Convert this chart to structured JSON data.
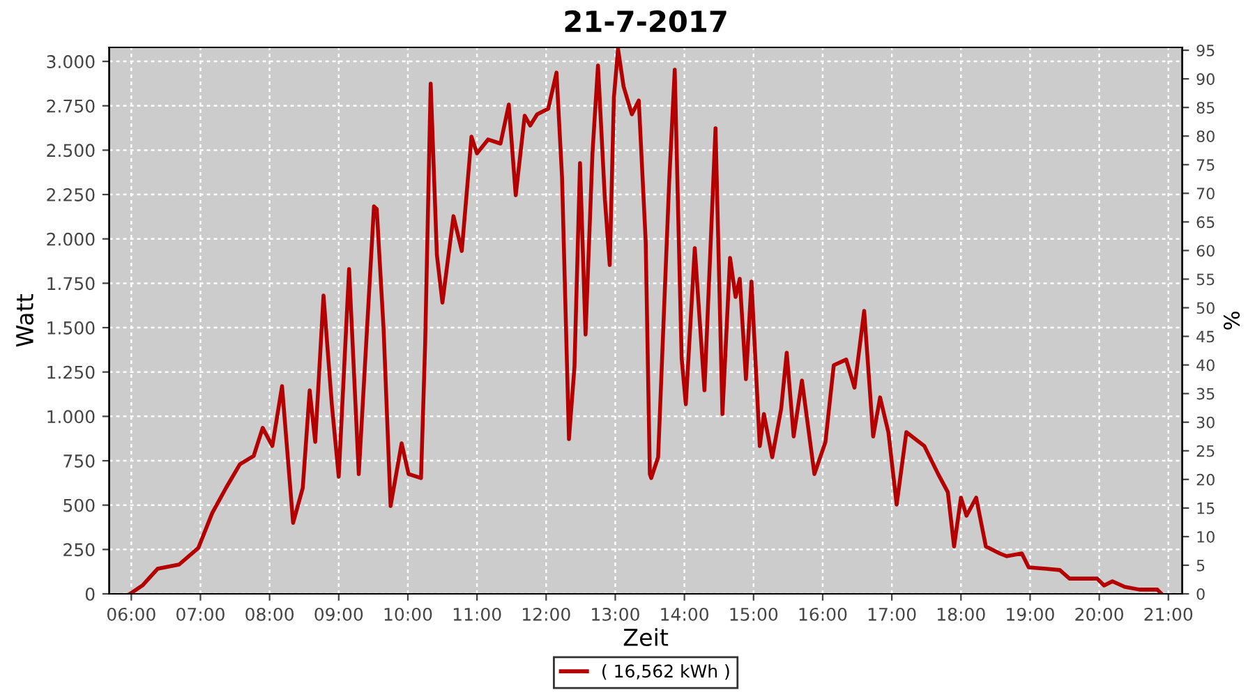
{
  "chart_data": {
    "type": "line",
    "title": "21-7-2017",
    "xlabel": "Zeit",
    "ylabel": "Watt",
    "y2label": "%",
    "series": [
      {
        "name": "( 16,562 kWh )",
        "color": "#b40000",
        "x": [
          5.98,
          6.16,
          6.38,
          6.69,
          6.97,
          7.17,
          7.37,
          7.57,
          7.77,
          7.9,
          8.04,
          8.18,
          8.34,
          8.48,
          8.58,
          8.66,
          8.78,
          8.9,
          9.0,
          9.15,
          9.29,
          9.51,
          9.55,
          9.65,
          9.75,
          9.91,
          10.01,
          10.19,
          10.25,
          10.33,
          10.42,
          10.5,
          10.66,
          10.78,
          10.92,
          11.0,
          11.16,
          11.34,
          11.46,
          11.56,
          11.69,
          11.77,
          11.87,
          12.03,
          12.15,
          12.23,
          12.33,
          12.41,
          12.49,
          12.57,
          12.67,
          12.75,
          12.85,
          12.92,
          12.98,
          13.04,
          13.12,
          13.24,
          13.34,
          13.44,
          13.5,
          13.52,
          13.62,
          13.78,
          13.86,
          13.96,
          14.02,
          14.15,
          14.29,
          14.45,
          14.55,
          14.66,
          14.74,
          14.8,
          14.89,
          14.97,
          15.09,
          15.15,
          15.27,
          15.4,
          15.48,
          15.58,
          15.7,
          15.88,
          16.04,
          16.16,
          16.34,
          16.46,
          16.6,
          16.73,
          16.83,
          16.95,
          17.07,
          17.21,
          17.47,
          17.67,
          17.81,
          17.9,
          18.0,
          18.08,
          18.22,
          18.36,
          18.56,
          18.66,
          18.88,
          18.98,
          19.23,
          19.43,
          19.57,
          19.77,
          19.97,
          20.07,
          20.19,
          20.37,
          20.58,
          20.84,
          20.9
        ],
        "values": [
          0,
          47,
          141,
          165,
          259,
          455,
          597,
          730,
          777,
          935,
          833,
          1170,
          400,
          597,
          1147,
          856,
          1681,
          1068,
          660,
          1830,
          675,
          2183,
          2168,
          1485,
          495,
          848,
          675,
          652,
          1406,
          2875,
          1909,
          1641,
          2128,
          1932,
          2576,
          2482,
          2560,
          2537,
          2757,
          2246,
          2694,
          2639,
          2702,
          2733,
          2937,
          2348,
          872,
          1280,
          2427,
          1461,
          2482,
          2977,
          2222,
          1853,
          2796,
          3071,
          2859,
          2702,
          2780,
          1987,
          675,
          652,
          770,
          2325,
          2953,
          1327,
          1068,
          1948,
          1147,
          2623,
          1013,
          1893,
          1673,
          1775,
          1210,
          1759,
          833,
          1013,
          770,
          1045,
          1359,
          887,
          1202,
          675,
          856,
          1288,
          1320,
          1162,
          1594,
          887,
          1107,
          911,
          503,
          911,
          833,
          675,
          573,
          267,
          542,
          440,
          542,
          267,
          228,
          212,
          228,
          149,
          141,
          134,
          86,
          86,
          86,
          47,
          71,
          39,
          24,
          24,
          0
        ]
      }
    ],
    "xlim": [
      5.68,
      21.2
    ],
    "xticks": [
      {
        "value": 6,
        "label": "06:00"
      },
      {
        "value": 7,
        "label": "07:00"
      },
      {
        "value": 8,
        "label": "08:00"
      },
      {
        "value": 9,
        "label": "09:00"
      },
      {
        "value": 10,
        "label": "10:00"
      },
      {
        "value": 11,
        "label": "11:00"
      },
      {
        "value": 12,
        "label": "12:00"
      },
      {
        "value": 13,
        "label": "13:00"
      },
      {
        "value": 14,
        "label": "14:00"
      },
      {
        "value": 15,
        "label": "15:00"
      },
      {
        "value": 16,
        "label": "16:00"
      },
      {
        "value": 17,
        "label": "17:00"
      },
      {
        "value": 18,
        "label": "18:00"
      },
      {
        "value": 19,
        "label": "19:00"
      },
      {
        "value": 20,
        "label": "20:00"
      },
      {
        "value": 21,
        "label": "21:00"
      }
    ],
    "ylim": [
      0,
      3079
    ],
    "yticks": [
      0,
      250,
      500,
      750,
      {
        "value": 1000,
        "label": "1.000"
      },
      {
        "value": 1250,
        "label": "1.250"
      },
      {
        "value": 1500,
        "label": "1.500"
      },
      {
        "value": 1750,
        "label": "1.750"
      },
      {
        "value": 2000,
        "label": "2.000"
      },
      {
        "value": 2250,
        "label": "2.250"
      },
      {
        "value": 2500,
        "label": "2.500"
      },
      {
        "value": 2750,
        "label": "2.750"
      },
      {
        "value": 3000,
        "label": "3.000"
      }
    ],
    "y2lim": [
      0,
      95.5
    ],
    "y2ticks": [
      0,
      5,
      10,
      15,
      20,
      25,
      30,
      35,
      40,
      45,
      50,
      55,
      60,
      65,
      70,
      75,
      80,
      85,
      90,
      95
    ],
    "grid": true,
    "legend": "bottom",
    "marker": "none",
    "line_style": "solid"
  }
}
